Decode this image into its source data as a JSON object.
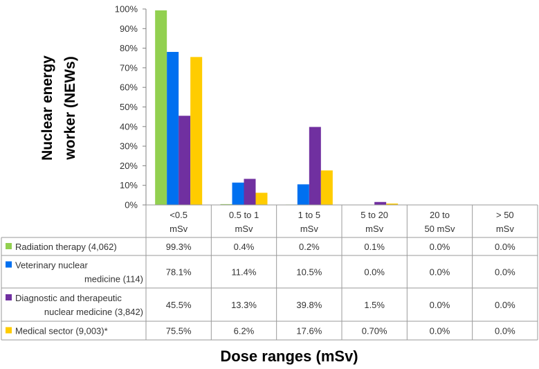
{
  "chart_data": {
    "type": "bar",
    "xlabel": "Dose ranges (mSv)",
    "ylabel": "Nuclear energy worker (NEWs)",
    "ylim": [
      0,
      100
    ],
    "yticks": [
      "0%",
      "10%",
      "20%",
      "30%",
      "40%",
      "50%",
      "60%",
      "70%",
      "80%",
      "90%",
      "100%"
    ],
    "grid": false,
    "legend": "data-table-left",
    "categories": [
      [
        "<0.5",
        "mSv"
      ],
      [
        "0.5 to 1",
        "mSv"
      ],
      [
        "1 to 5",
        "mSv"
      ],
      [
        "5 to 20",
        "mSv"
      ],
      [
        "20 to",
        "50 mSv"
      ],
      [
        "> 50",
        "mSv"
      ]
    ],
    "series": [
      {
        "name": [
          "Radiation therapy (4,062)"
        ],
        "color": "#92d050",
        "values": [
          99.3,
          0.4,
          0.2,
          0.1,
          0.0,
          0.0
        ],
        "labels": [
          "99.3%",
          "0.4%",
          "0.2%",
          "0.1%",
          "0.0%",
          "0.0%"
        ]
      },
      {
        "name": [
          "Veterinary nuclear",
          "medicine (114)"
        ],
        "color": "#0070f0",
        "values": [
          78.1,
          11.4,
          10.5,
          0.0,
          0.0,
          0.0
        ],
        "labels": [
          "78.1%",
          "11.4%",
          "10.5%",
          "0.0%",
          "0.0%",
          "0.0%"
        ]
      },
      {
        "name": [
          "Diagnostic and therapeutic",
          "nuclear medicine (3,842)"
        ],
        "color": "#7030a0",
        "values": [
          45.5,
          13.3,
          39.8,
          1.5,
          0.0,
          0.0
        ],
        "labels": [
          "45.5%",
          "13.3%",
          "39.8%",
          "1.5%",
          "0.0%",
          "0.0%"
        ]
      },
      {
        "name": [
          "Medical sector (9,003)*"
        ],
        "color": "#ffcc00",
        "values": [
          75.5,
          6.2,
          17.6,
          0.7,
          0.0,
          0.0
        ],
        "labels": [
          "75.5%",
          "6.2%",
          "17.6%",
          "0.70%",
          "0.0%",
          "0.0%"
        ]
      }
    ]
  }
}
